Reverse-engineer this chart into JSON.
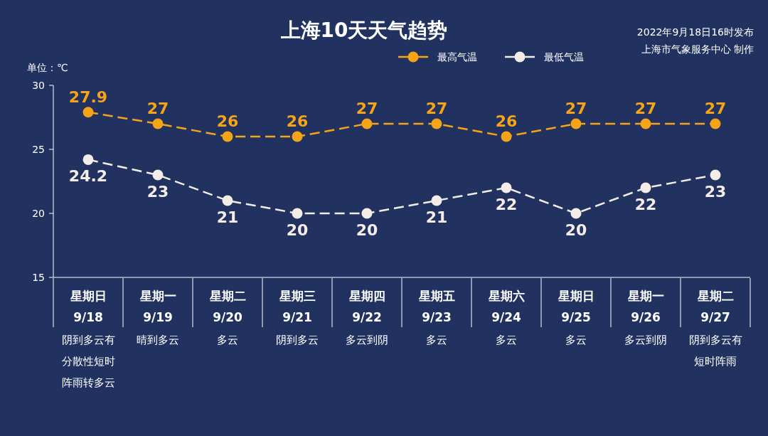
{
  "chart_data": {
    "type": "line",
    "title": "上海10天天气趋势",
    "ylabel": "单位：℃",
    "annotations": [
      "2022年9月18日16时发布",
      "上海市气象服务中心 制作"
    ],
    "categories": [
      "星期日\n9/18\n阴到多云有分散性短时阵雨转多云",
      "星期一\n9/19\n晴到多云",
      "星期二\n9/20\n多云",
      "星期三\n9/21\n阴到多云",
      "星期四\n9/22\n多云到阴",
      "星期五\n9/23\n多云",
      "星期六\n9/24\n多云",
      "星期日\n9/25\n多云",
      "星期一\n9/26\n多云到阴",
      "星期二\n9/27\n阴到多云有短时阵雨"
    ],
    "series": [
      {
        "name": "最高气温",
        "color": "#f5a418",
        "values": [
          27.9,
          27,
          26,
          26,
          27,
          27,
          26,
          27,
          27,
          27
        ]
      },
      {
        "name": "最低气温",
        "color": "#f4ece6",
        "values": [
          24.2,
          23,
          21,
          20,
          20,
          21,
          22,
          20,
          22,
          23
        ]
      }
    ],
    "ylim": [
      15,
      30
    ],
    "yticks": [
      15,
      20,
      25,
      30
    ],
    "grid": false,
    "legend": "top",
    "marker": "circle",
    "line_style": "dashed",
    "data_labels": true
  }
}
